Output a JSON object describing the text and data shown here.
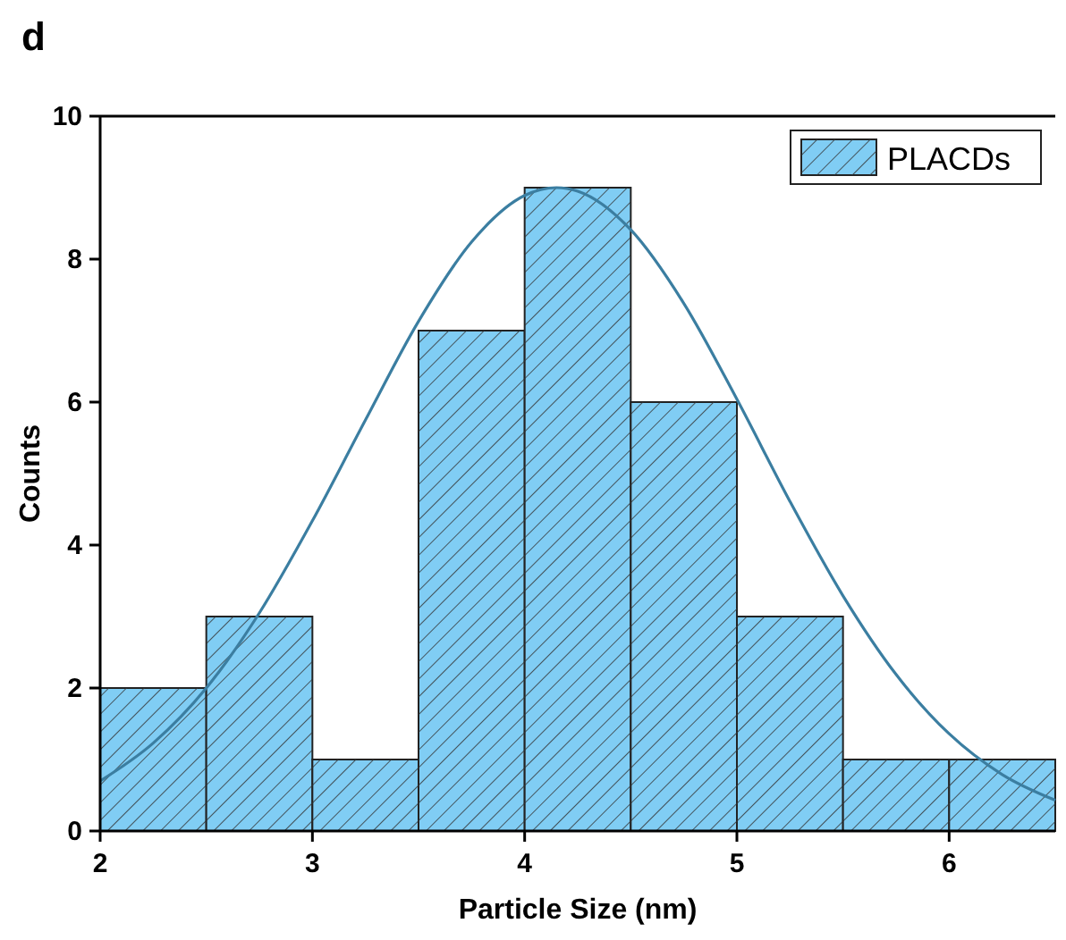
{
  "chart_data": {
    "type": "histogram",
    "xlabel": "Particle Size (nm)",
    "ylabel": "Counts",
    "annotations": [
      "d"
    ],
    "bins": [
      2,
      2.5,
      3,
      3.5,
      4,
      4.5,
      5,
      5.5,
      6,
      6.5
    ],
    "series": [
      {
        "name": "PLACDs",
        "color": "#80cdf4",
        "values": [
          2,
          3,
          1,
          7,
          9,
          6,
          3,
          1,
          1
        ]
      },
      {
        "type": "line",
        "color": "#3b7ea1",
        "x": [
          2,
          2.25,
          2.5,
          2.75,
          3,
          3.25,
          3.5,
          3.75,
          4,
          4.15,
          4.25,
          4.5,
          4.75,
          5,
          5.25,
          5.5,
          5.75,
          6,
          6.25,
          6.5
        ],
        "values": [
          0.7,
          1.23,
          2.0,
          3.05,
          4.34,
          5.75,
          7.13,
          8.24,
          8.89,
          9,
          8.95,
          8.41,
          7.38,
          6.04,
          4.61,
          3.29,
          2.19,
          1.36,
          0.79,
          0.43
        ]
      }
    ],
    "xlim": [
      2,
      6.5
    ],
    "xticks": [
      2,
      3,
      4,
      5,
      6
    ],
    "ylim": [
      0,
      10
    ],
    "yticks": [
      0,
      2,
      4,
      6,
      8,
      10
    ],
    "legend": "top right",
    "grid": false,
    "marker": "none",
    "line_style": "solid"
  }
}
